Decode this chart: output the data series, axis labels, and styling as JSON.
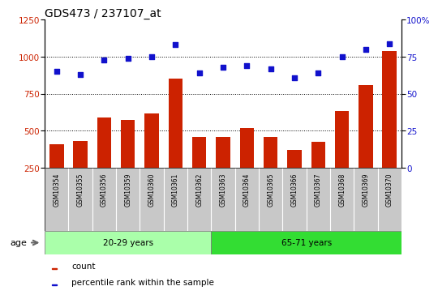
{
  "title": "GDS473 / 237107_at",
  "samples": [
    "GSM10354",
    "GSM10355",
    "GSM10356",
    "GSM10359",
    "GSM10360",
    "GSM10361",
    "GSM10362",
    "GSM10363",
    "GSM10364",
    "GSM10365",
    "GSM10366",
    "GSM10367",
    "GSM10368",
    "GSM10369",
    "GSM10370"
  ],
  "counts": [
    410,
    430,
    590,
    575,
    615,
    855,
    460,
    460,
    520,
    460,
    370,
    425,
    635,
    810,
    1040
  ],
  "percentile": [
    65,
    63,
    73,
    74,
    75,
    83,
    64,
    68,
    69,
    67,
    61,
    64,
    75,
    80,
    84
  ],
  "group1_label": "20-29 years",
  "group2_label": "65-71 years",
  "group1_count": 7,
  "group2_count": 8,
  "age_label": "age",
  "left_ylim": [
    250,
    1250
  ],
  "right_ylim": [
    0,
    100
  ],
  "left_yticks": [
    250,
    500,
    750,
    1000,
    1250
  ],
  "right_yticks": [
    0,
    25,
    50,
    75,
    100
  ],
  "right_yticklabels": [
    "0",
    "25",
    "50",
    "75",
    "100%"
  ],
  "bar_color": "#cc2200",
  "dot_color": "#1111cc",
  "grid_color": "#000000",
  "bg_color": "#ffffff",
  "xticklabel_bg": "#c8c8c8",
  "group1_bg": "#aaffaa",
  "group2_bg": "#33dd33",
  "legend_count_label": "count",
  "legend_pct_label": "percentile rank within the sample",
  "title_fontsize": 10,
  "axis_fontsize": 7.5,
  "tick_fontsize": 6,
  "label_fontsize": 7.5
}
